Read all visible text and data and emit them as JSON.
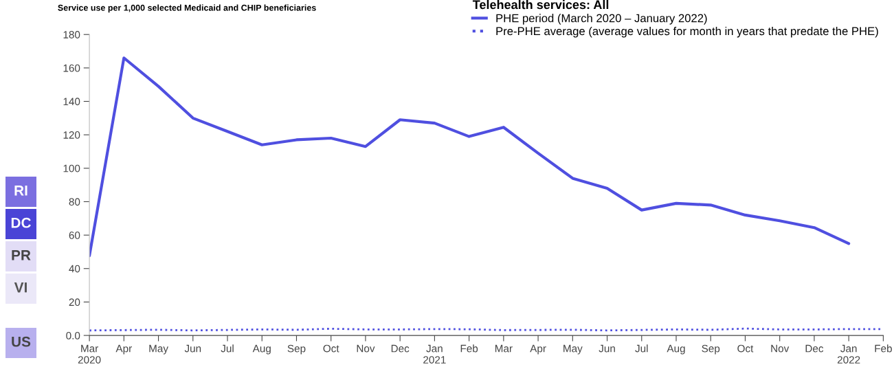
{
  "chart_data": {
    "type": "line",
    "title": "Service use per 1,000 selected Medicaid and CHIP beneficiaries",
    "legend_title": "Telehealth services: All",
    "categories": [
      "Mar\n2020",
      "Apr",
      "May",
      "Jun",
      "Jul",
      "Aug",
      "Sep",
      "Oct",
      "Nov",
      "Dec",
      "Jan\n2021",
      "Feb",
      "Mar",
      "Apr",
      "May",
      "Jun",
      "Jul",
      "Aug",
      "Sep",
      "Oct",
      "Nov",
      "Dec",
      "Jan\n2022",
      "Feb"
    ],
    "series": [
      {
        "name": "PHE period (March 2020 – January 2022)",
        "color": "#4f4fe0",
        "line_style": "solid",
        "values": [
          47.7,
          166,
          149,
          130,
          122,
          114,
          117,
          118,
          113,
          129,
          127,
          119,
          124.5,
          109,
          94,
          88,
          75,
          79,
          78,
          72,
          68.6,
          64.5,
          55,
          null
        ]
      },
      {
        "name": "Pre-PHE average (average values for month in years that predate the PHE)",
        "color": "#4f4fe0",
        "line_style": "dotted",
        "values": [
          3.0,
          3.2,
          3.4,
          3.0,
          3.3,
          3.6,
          3.4,
          4.0,
          3.6,
          3.6,
          3.8,
          3.7,
          3.2,
          3.3,
          3.4,
          3.0,
          3.3,
          3.6,
          3.4,
          4.1,
          3.6,
          3.6,
          3.8,
          3.8
        ]
      }
    ],
    "ylim": [
      0,
      180
    ],
    "yticks": [
      {
        "value": 0,
        "label": "0.0"
      },
      20,
      40,
      60,
      80,
      100,
      120,
      140,
      160,
      180
    ],
    "grid": false,
    "legend": "top right",
    "marker": "none",
    "annotations": [
      "RI",
      "DC",
      "PR",
      "VI",
      "US"
    ]
  }
}
